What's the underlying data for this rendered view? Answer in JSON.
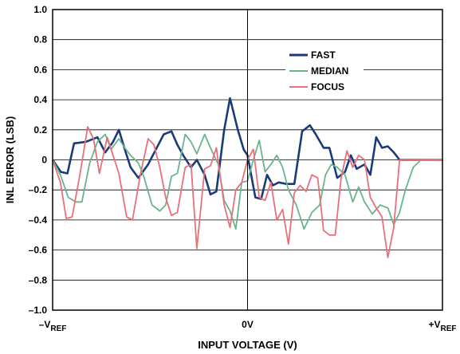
{
  "chart_data": {
    "type": "line",
    "xlabel": "INPUT VOLTAGE (V)",
    "ylabel": "INL ERROR (LSB)",
    "ylim": [
      -1.0,
      1.0
    ],
    "xlim": [
      0,
      1
    ],
    "grid": true,
    "legend_position": "top-right",
    "y_ticks": [
      "1.0",
      "0.8",
      "0.6",
      "0.4",
      "0.2",
      "0",
      "–0.2",
      "–0.4",
      "–0.6",
      "–0.8",
      "–1.0"
    ],
    "x_ticks": [
      {
        "base": "–V",
        "sub": "REF"
      },
      {
        "base": "0V",
        "sub": ""
      },
      {
        "base": "+V",
        "sub": "REF"
      }
    ],
    "series": [
      {
        "name": "FAST",
        "color": "#1a3a7a",
        "x": [
          0.0,
          0.021,
          0.038,
          0.055,
          0.085,
          0.115,
          0.135,
          0.155,
          0.17,
          0.185,
          0.2,
          0.22,
          0.245,
          0.265,
          0.285,
          0.305,
          0.32,
          0.335,
          0.355,
          0.37,
          0.39,
          0.405,
          0.42,
          0.44,
          0.455,
          0.475,
          0.49,
          0.5,
          0.52,
          0.535,
          0.55,
          0.565,
          0.58,
          0.6,
          0.62,
          0.64,
          0.66,
          0.675,
          0.695,
          0.71,
          0.73,
          0.75,
          0.765,
          0.78,
          0.8,
          0.815,
          0.83,
          0.845,
          0.86,
          0.875,
          0.89,
          0.905,
          0.92,
          0.935,
          0.955,
          0.975,
          1.0
        ],
        "y": [
          0.0,
          -0.08,
          -0.09,
          0.11,
          0.12,
          0.15,
          0.05,
          0.12,
          0.2,
          0.07,
          -0.05,
          -0.12,
          -0.03,
          0.07,
          0.17,
          0.19,
          0.1,
          0.03,
          -0.05,
          0.0,
          -0.1,
          -0.23,
          -0.21,
          0.2,
          0.41,
          0.2,
          0.07,
          0.03,
          -0.25,
          -0.26,
          -0.1,
          -0.17,
          -0.15,
          -0.16,
          -0.16,
          0.19,
          0.23,
          0.17,
          0.08,
          0.08,
          -0.12,
          -0.08,
          0.03,
          -0.06,
          -0.03,
          -0.1,
          0.15,
          0.08,
          0.09,
          0.05,
          0.0,
          0.0,
          0.0,
          0.0,
          0.0,
          0.0,
          0.0
        ]
      },
      {
        "name": "MEDIAN",
        "color": "#6ab48c",
        "x": [
          0.0,
          0.02,
          0.04,
          0.06,
          0.075,
          0.095,
          0.115,
          0.135,
          0.15,
          0.17,
          0.185,
          0.2,
          0.22,
          0.235,
          0.255,
          0.275,
          0.29,
          0.305,
          0.32,
          0.34,
          0.355,
          0.37,
          0.39,
          0.405,
          0.425,
          0.44,
          0.455,
          0.47,
          0.485,
          0.5,
          0.515,
          0.53,
          0.545,
          0.56,
          0.575,
          0.59,
          0.605,
          0.625,
          0.645,
          0.665,
          0.685,
          0.7,
          0.715,
          0.73,
          0.75,
          0.77,
          0.785,
          0.8,
          0.82,
          0.84,
          0.86,
          0.875,
          0.89,
          0.905,
          0.925,
          0.945,
          0.965,
          0.985,
          1.0
        ],
        "y": [
          0.0,
          -0.1,
          -0.25,
          -0.28,
          -0.28,
          -0.02,
          0.12,
          0.17,
          0.07,
          0.14,
          0.08,
          0.03,
          -0.02,
          -0.12,
          -0.3,
          -0.34,
          -0.3,
          -0.11,
          -0.09,
          0.17,
          0.12,
          0.04,
          0.17,
          0.08,
          -0.03,
          -0.27,
          -0.34,
          -0.46,
          -0.15,
          -0.14,
          0.0,
          0.13,
          -0.08,
          -0.03,
          0.03,
          -0.05,
          -0.2,
          -0.3,
          -0.46,
          -0.35,
          -0.3,
          -0.1,
          -0.03,
          -0.05,
          -0.1,
          -0.28,
          -0.18,
          -0.28,
          -0.36,
          -0.3,
          -0.32,
          -0.43,
          -0.35,
          -0.2,
          -0.05,
          0.0,
          0.0,
          0.0,
          0.0
        ]
      },
      {
        "name": "FOCUS",
        "color": "#e8707a",
        "x": [
          0.0,
          0.02,
          0.035,
          0.05,
          0.07,
          0.09,
          0.105,
          0.12,
          0.14,
          0.155,
          0.17,
          0.19,
          0.205,
          0.225,
          0.245,
          0.26,
          0.275,
          0.29,
          0.305,
          0.32,
          0.34,
          0.355,
          0.37,
          0.39,
          0.405,
          0.42,
          0.44,
          0.455,
          0.47,
          0.485,
          0.5,
          0.515,
          0.53,
          0.545,
          0.56,
          0.575,
          0.59,
          0.605,
          0.62,
          0.635,
          0.65,
          0.665,
          0.68,
          0.695,
          0.71,
          0.725,
          0.74,
          0.755,
          0.77,
          0.785,
          0.8,
          0.815,
          0.83,
          0.845,
          0.86,
          0.875,
          0.89,
          0.905,
          0.925,
          0.945,
          0.965,
          0.985,
          1.0
        ],
        "y": [
          0.0,
          -0.15,
          -0.39,
          -0.38,
          -0.1,
          0.22,
          0.14,
          -0.09,
          0.15,
          0.03,
          -0.09,
          -0.38,
          -0.4,
          -0.1,
          0.14,
          0.1,
          -0.05,
          -0.25,
          -0.37,
          -0.35,
          -0.05,
          -0.03,
          -0.59,
          -0.06,
          -0.04,
          0.08,
          -0.3,
          -0.45,
          -0.2,
          -0.15,
          0.0,
          0.07,
          -0.25,
          -0.27,
          -0.15,
          -0.4,
          -0.33,
          -0.56,
          -0.22,
          -0.17,
          -0.21,
          -0.1,
          -0.12,
          -0.47,
          -0.5,
          -0.5,
          -0.12,
          0.06,
          -0.05,
          0.03,
          0.0,
          -0.25,
          -0.32,
          -0.38,
          -0.65,
          -0.45,
          0.0,
          0.0,
          0.0,
          0.0,
          0.0,
          0.0,
          0.0
        ]
      }
    ]
  }
}
